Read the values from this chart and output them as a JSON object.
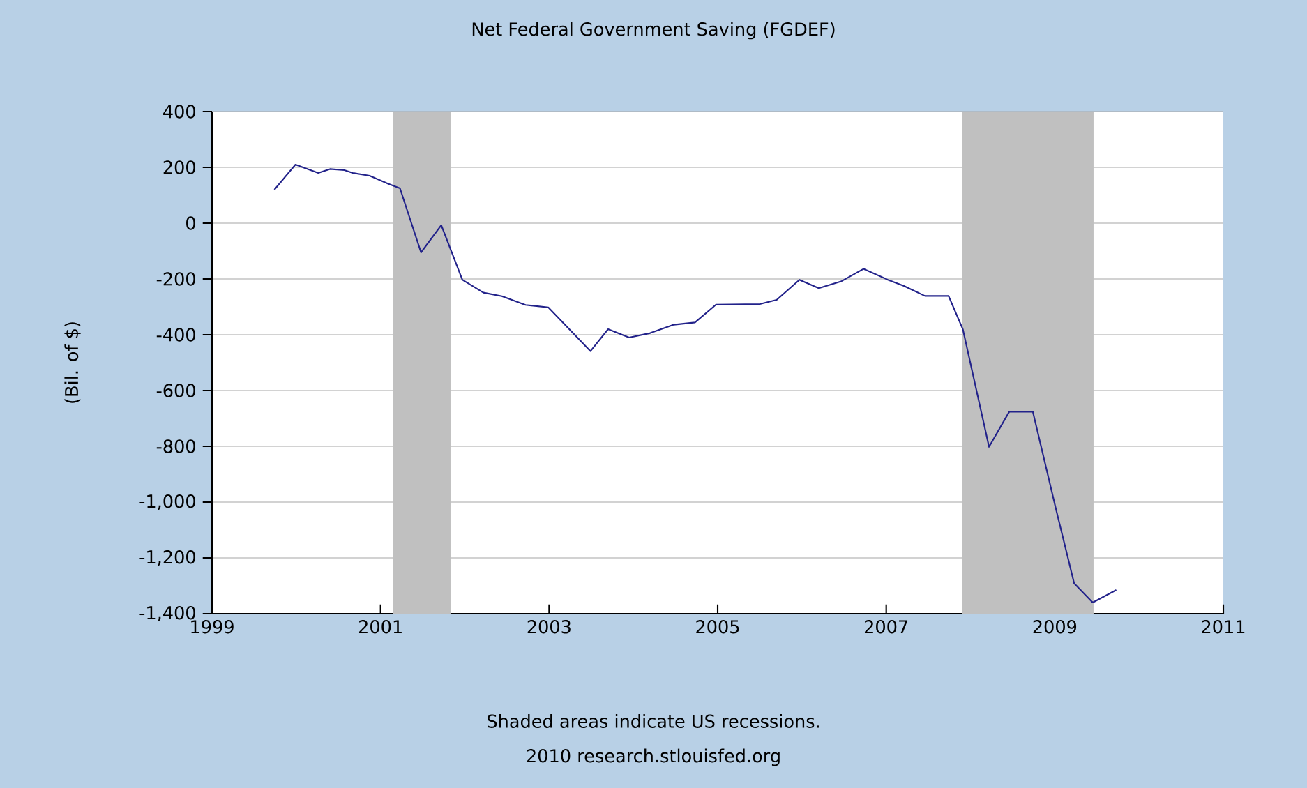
{
  "chart_data": {
    "type": "line",
    "title": "Net Federal Government Saving (FGDEF)",
    "ylabel": "(Bil. of $)",
    "annotations": [
      "Shaded areas indicate US recessions.",
      "2010 research.stlouisfed.org"
    ],
    "x": [
      1999.74,
      1999.99,
      2000.26,
      2000.4,
      2000.57,
      2000.67,
      2000.87,
      2001.09,
      2001.23,
      2001.48,
      2001.72,
      2001.97,
      2002.22,
      2002.44,
      2002.72,
      2002.99,
      2003.49,
      2003.7,
      2003.95,
      2004.2,
      2004.48,
      2004.73,
      2004.98,
      2005.5,
      2005.7,
      2005.97,
      2006.2,
      2006.47,
      2006.73,
      2007.02,
      2007.21,
      2007.46,
      2007.74,
      2007.91,
      2008.22,
      2008.46,
      2008.74,
      2009.01,
      2009.23,
      2009.45,
      2009.73
    ],
    "series": [
      {
        "color": "#22228a",
        "values": [
          120,
          210,
          180,
          194,
          190,
          180,
          170,
          141,
          125,
          -105,
          -7,
          -203,
          -249,
          -262,
          -293,
          -302,
          -459,
          -380,
          -410,
          -394,
          -364,
          -356,
          -292,
          -290,
          -275,
          -203,
          -233,
          -208,
          -164,
          -203,
          -225,
          -261,
          -261,
          -381,
          -802,
          -676,
          -676,
          -1020,
          -1291,
          -1360,
          -1315
        ]
      }
    ],
    "xlim": [
      1999,
      2011
    ],
    "ylim": [
      -1400,
      400
    ],
    "xticks": [
      1999,
      2001,
      2003,
      2005,
      2007,
      2009,
      2011
    ],
    "yticks": [
      400,
      200,
      0,
      -200,
      -400,
      -600,
      -800,
      {
        "value": -1000,
        "label": "-1,000"
      },
      {
        "value": -1200,
        "label": "-1,200"
      },
      {
        "value": -1400,
        "label": "-1,400"
      }
    ],
    "grid": "y",
    "bands": [
      {
        "axis": "x",
        "from": 2001.15,
        "to": 2001.83,
        "color": "#c0c0c0"
      },
      {
        "axis": "x",
        "from": 2007.9,
        "to": 2009.46,
        "color": "#c0c0c0"
      }
    ]
  }
}
